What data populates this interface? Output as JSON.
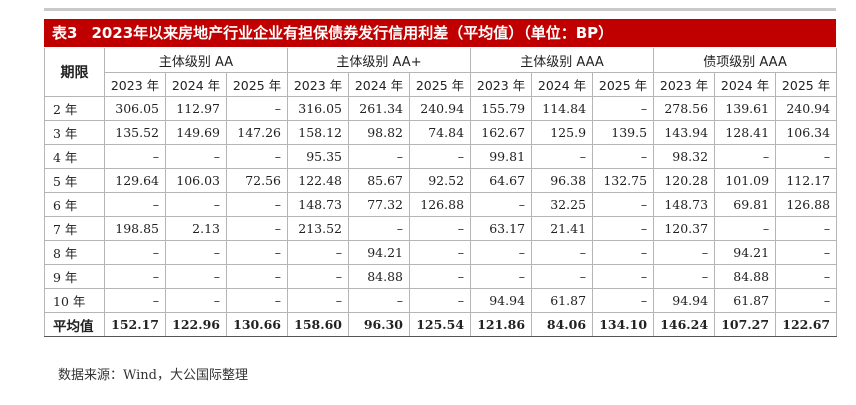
{
  "title": {
    "label": "表3",
    "text": "2023年以来房地产行业企业有担保债券发行信用利差（平均值）（单位：BP）"
  },
  "table": {
    "period_header": "期限",
    "groups": [
      "主体级别 AA",
      "主体级别 AA+",
      "主体级别 AAA",
      "债项级别 AAA"
    ],
    "years": [
      "2023 年",
      "2024 年",
      "2025 年"
    ],
    "rows": [
      {
        "term": "2 年",
        "values": [
          "306.05",
          "112.97",
          "–",
          "316.05",
          "261.34",
          "240.94",
          "155.79",
          "114.84",
          "–",
          "278.56",
          "139.61",
          "240.94"
        ]
      },
      {
        "term": "3 年",
        "values": [
          "135.52",
          "149.69",
          "147.26",
          "158.12",
          "98.82",
          "74.84",
          "162.67",
          "125.9",
          "139.5",
          "143.94",
          "128.41",
          "106.34"
        ]
      },
      {
        "term": "4 年",
        "values": [
          "–",
          "–",
          "–",
          "95.35",
          "–",
          "–",
          "99.81",
          "–",
          "–",
          "98.32",
          "–",
          "–"
        ]
      },
      {
        "term": "5 年",
        "values": [
          "129.64",
          "106.03",
          "72.56",
          "122.48",
          "85.67",
          "92.52",
          "64.67",
          "96.38",
          "132.75",
          "120.28",
          "101.09",
          "112.17"
        ]
      },
      {
        "term": "6 年",
        "values": [
          "–",
          "–",
          "–",
          "148.73",
          "77.32",
          "126.88",
          "–",
          "32.25",
          "–",
          "148.73",
          "69.81",
          "126.88"
        ]
      },
      {
        "term": "7 年",
        "values": [
          "198.85",
          "2.13",
          "–",
          "213.52",
          "–",
          "–",
          "63.17",
          "21.41",
          "–",
          "120.37",
          "–",
          "–"
        ]
      },
      {
        "term": "8 年",
        "values": [
          "–",
          "–",
          "–",
          "–",
          "94.21",
          "–",
          "–",
          "–",
          "–",
          "–",
          "94.21",
          "–"
        ]
      },
      {
        "term": "9 年",
        "values": [
          "–",
          "–",
          "–",
          "–",
          "84.88",
          "–",
          "–",
          "–",
          "–",
          "–",
          "84.88",
          "–"
        ]
      },
      {
        "term": "10 年",
        "values": [
          "–",
          "–",
          "–",
          "–",
          "–",
          "–",
          "94.94",
          "61.87",
          "–",
          "94.94",
          "61.87",
          "–"
        ]
      }
    ],
    "average": {
      "term": "平均值",
      "values": [
        "152.17",
        "122.96",
        "130.66",
        "158.60",
        "96.30",
        "125.54",
        "121.86",
        "84.06",
        "134.10",
        "146.24",
        "107.27",
        "122.67"
      ]
    }
  },
  "source": "数据来源：Wind，大公国际整理"
}
